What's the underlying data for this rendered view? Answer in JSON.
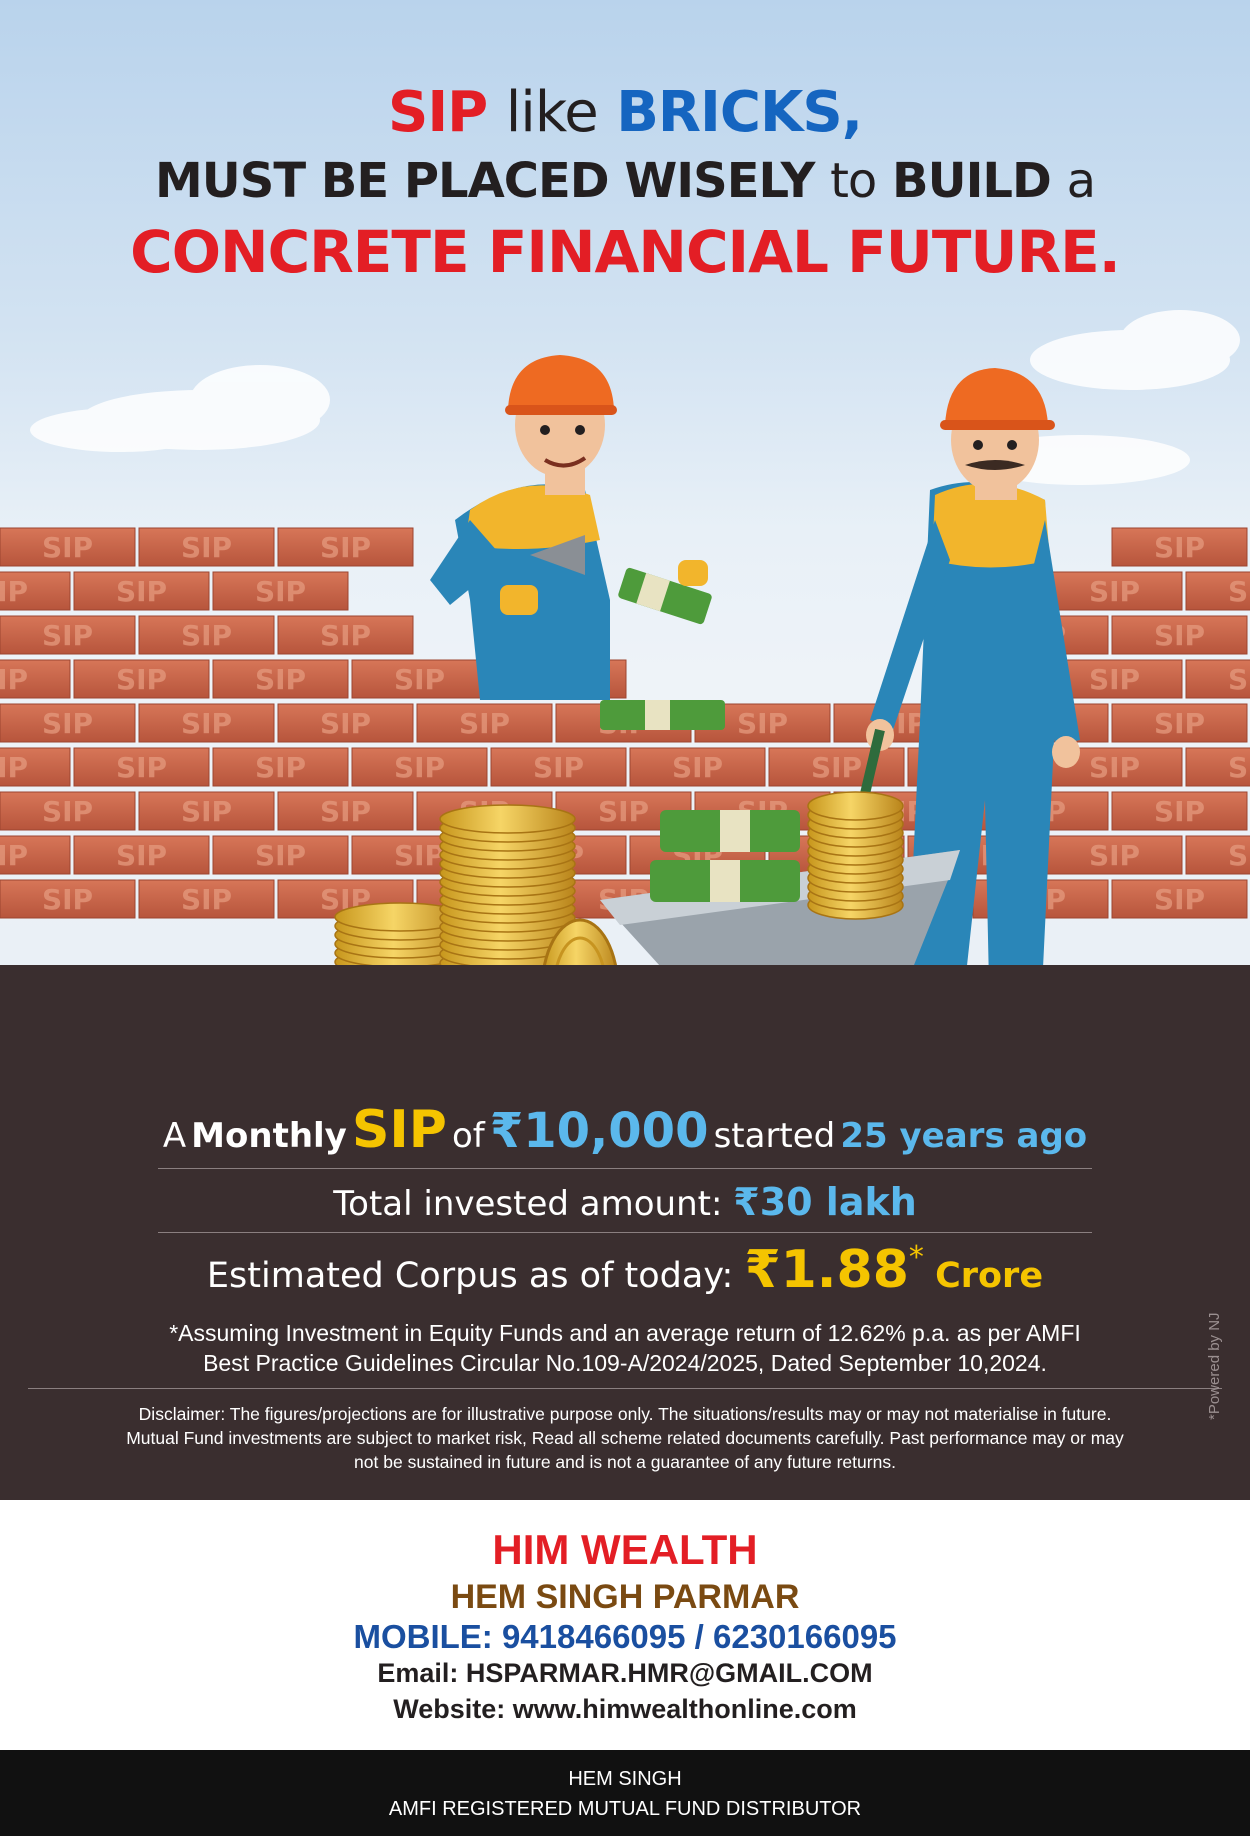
{
  "headline": {
    "line1": {
      "sip": "SIP",
      "like": "like",
      "bricks": "BRICKS,"
    },
    "line2": {
      "a": "MUST BE PLACED WISELY",
      "b": "to",
      "c": "BUILD",
      "d": "a"
    },
    "line3": "CONCRETE FINANCIAL FUTURE."
  },
  "brick_label": "SIP",
  "sip_line": {
    "a": "A",
    "monthly": "Monthly",
    "sip": "SIP",
    "of": "of",
    "amount": "₹10,000",
    "started": "started",
    "duration": "25 years ago"
  },
  "invested": {
    "label": "Total invested amount:",
    "value": "₹30 lakh"
  },
  "corpus": {
    "label": "Estimated Corpus as of today:",
    "value": "₹1.88",
    "asterisk": "*",
    "unit": "Crore"
  },
  "assumption": {
    "line1": "*Assuming Investment in Equity Funds and an average return of 12.62% p.a. as per AMFI",
    "line2": "Best Practice  Guidelines Circular No.109-A/2024/2025, Dated September 10,2024."
  },
  "disclaimer": {
    "line1": "Disclaimer: The figures/projections are for illustrative purpose only. The situations/results may or may not materialise in future.",
    "line2": "Mutual Fund investments are subject to market risk, Read all scheme related documents carefully. Past performance may or may",
    "line3": "not be sustained in future and is not a guarantee of any future returns."
  },
  "powered_by": "*Powered by NJ",
  "contact": {
    "company": "HIM WEALTH",
    "person": "HEM SINGH PARMAR",
    "mobile": "MOBILE: 9418466095 / 6230166095",
    "email": "Email: HSPARMAR.HMR@GMAIL.COM",
    "website": "Website: www.himwealthonline.com"
  },
  "footer": {
    "name": "HEM SINGH",
    "title": "AMFI REGISTERED MUTUAL FUND DISTRIBUTOR"
  },
  "colors": {
    "red": "#e31e25",
    "blue": "#1565c0",
    "gold": "#f5c400",
    "sky_blue": "#5bb8ec",
    "panel": "#3a2e2f",
    "brick": "#c8664a"
  },
  "icons": [
    "worker-with-trowel-illustration",
    "worker-with-wheelbarrow-illustration",
    "gold-coin-stacks-illustration",
    "cash-bundles-illustration"
  ]
}
